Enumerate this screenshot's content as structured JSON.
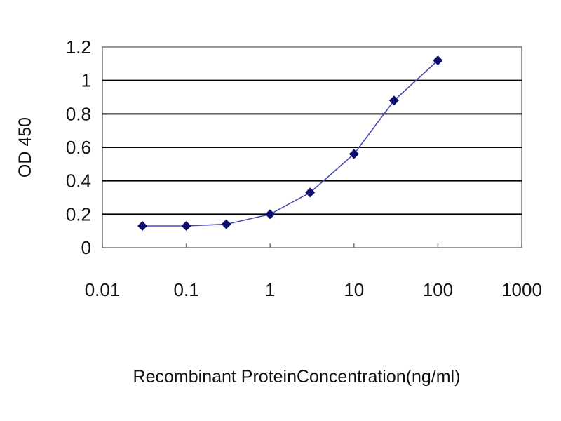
{
  "chart_data": {
    "type": "line",
    "title": "",
    "xlabel": "Recombinant ProteinConcentration(ng/ml)",
    "ylabel": "OD 450",
    "x_scale": "log",
    "xlim": [
      0.01,
      1000
    ],
    "ylim": [
      0,
      1.2
    ],
    "x_ticks": [
      0.01,
      0.1,
      1,
      10,
      100,
      1000
    ],
    "x_tick_labels": [
      "0.01",
      "0.1",
      "1",
      "10",
      "100",
      "1000"
    ],
    "y_ticks": [
      0,
      0.2,
      0.4,
      0.6,
      0.8,
      1,
      1.2
    ],
    "y_tick_labels": [
      "0",
      "0.2",
      "0.4",
      "0.6",
      "0.8",
      "1",
      "1.2"
    ],
    "grid": "horizontal",
    "legend": "none",
    "series": [
      {
        "x": [
          0.03,
          0.1,
          0.3,
          1,
          3,
          10,
          30,
          100
        ],
        "y": [
          0.13,
          0.13,
          0.14,
          0.2,
          0.33,
          0.56,
          0.88,
          1.12
        ],
        "color": "#1a1a8c",
        "marker": "diamond"
      }
    ],
    "colors": {
      "plot_background": "#ffffff",
      "plot_border": "#777777",
      "gridline": "#000000",
      "line": "#4a4ab0",
      "marker": "#0d0d70"
    }
  }
}
